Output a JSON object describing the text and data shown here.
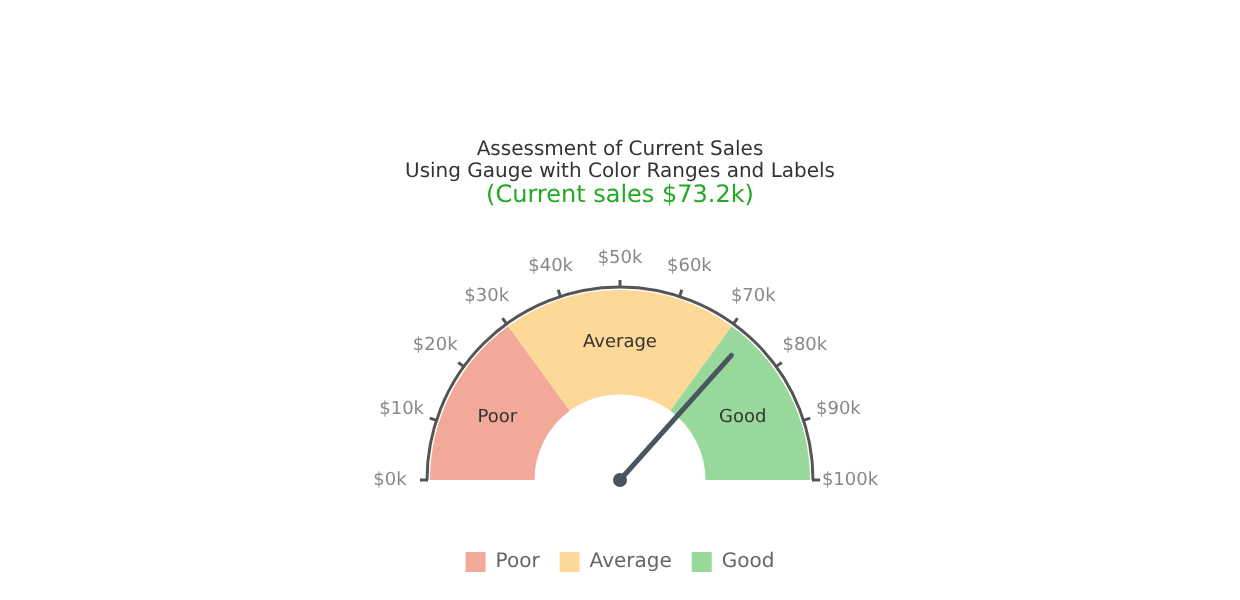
{
  "chart_data": {
    "type": "donut",
    "title": "Assessment of Current Sales\nUsing Gauge with Color Ranges and Labels",
    "subtitle": "(Current sales $73.2k)",
    "categories": [
      "Poor",
      "Average",
      "Good"
    ],
    "values": [
      30,
      40,
      30
    ],
    "colors": [
      "#f2a999",
      "#fdd896",
      "#98d89a"
    ],
    "needle": "Good",
    "annotations": [
      "$0k",
      "$10k",
      "$20k",
      "$30k",
      "$40k",
      "$50k",
      "$60k",
      "$70k",
      "$80k",
      "$90k",
      "$100k"
    ],
    "legend": "bottom"
  }
}
